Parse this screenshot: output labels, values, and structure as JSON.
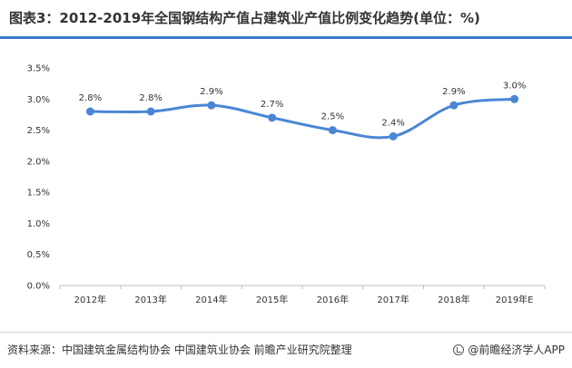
{
  "header": {
    "title": "图表3：2012-2019年全国钢结构产值占建筑业产值比例变化趋势(单位：%)"
  },
  "footer": {
    "source": "资料来源：中国建筑金属结构协会 中国建筑业协会 前瞻产业研究院整理",
    "brand": "@前瞻经济学人APP"
  },
  "colors": {
    "line": "#4a86d4",
    "accent_rule": "#3a78c9"
  },
  "chart_data": {
    "type": "line",
    "title": "图表3：2012-2019年全国钢结构产值占建筑业产值比例变化趋势(单位：%)",
    "categories": [
      "2012年",
      "2013年",
      "2014年",
      "2015年",
      "2016年",
      "2017年",
      "2018年",
      "2019年E"
    ],
    "values": [
      2.8,
      2.8,
      2.9,
      2.7,
      2.5,
      2.4,
      2.9,
      3.0
    ],
    "data_labels": [
      "2.8%",
      "2.8%",
      "2.9%",
      "2.7%",
      "2.5%",
      "2.4%",
      "2.9%",
      "3.0%"
    ],
    "ylim": [
      0,
      3.5
    ],
    "yticks": [
      "0.0%",
      "0.5%",
      "1.0%",
      "1.5%",
      "2.0%",
      "2.5%",
      "3.0%",
      "3.5%"
    ],
    "xlabel": "",
    "ylabel": "",
    "grid": false,
    "smooth": true
  }
}
